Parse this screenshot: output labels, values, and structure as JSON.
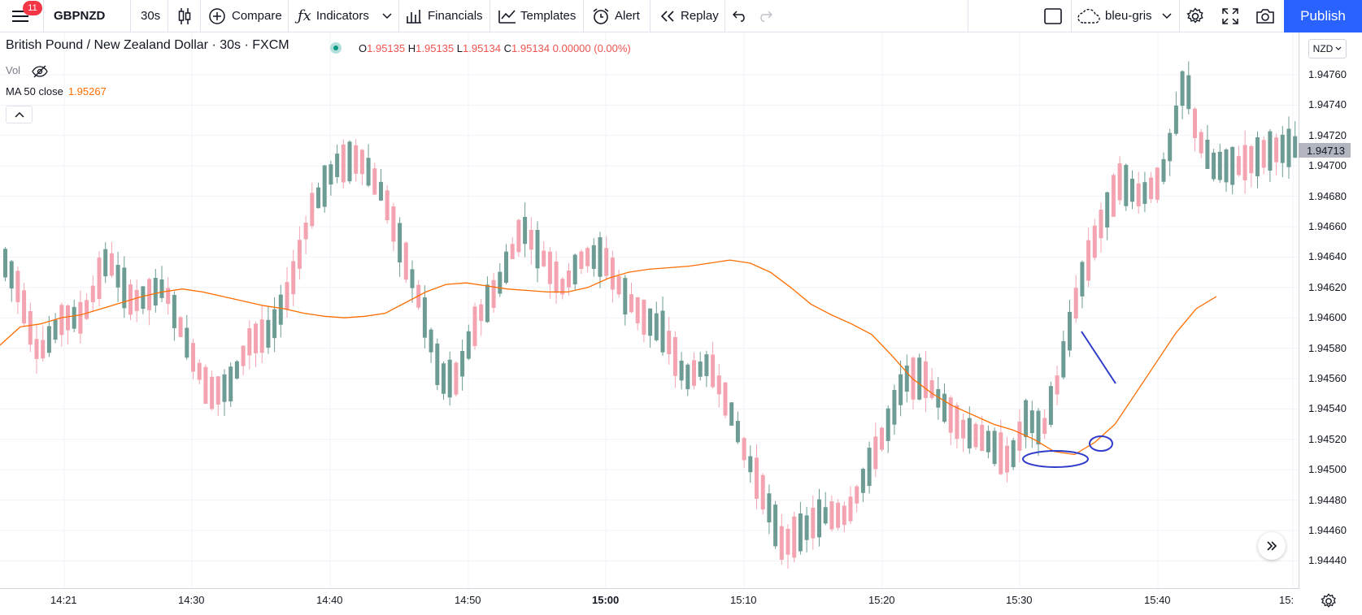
{
  "toolbar": {
    "notification_count": "11",
    "symbol": "GBPNZD",
    "interval": "30s",
    "compare_label": "Compare",
    "indicators_label": "Indicators",
    "financials_label": "Financials",
    "templates_label": "Templates",
    "alert_label": "Alert",
    "replay_label": "Replay",
    "layout_name": "bleu-gris",
    "publish_label": "Publish"
  },
  "legend": {
    "title": "British Pound / New Zealand Dollar · 30s · FXCM",
    "open_key": "O",
    "open": "1.95135",
    "high_key": "H",
    "high": "1.95135",
    "low_key": "L",
    "low": "1.95134",
    "close_key": "C",
    "close": "1.95134",
    "change": "0.00000 (0.00%)",
    "vol_label": "Vol",
    "ma_label": "MA 50 close",
    "ma_value": "1.95267"
  },
  "price_axis": {
    "currency": "NZD",
    "last_price": "1.94713",
    "ticks": [
      "1.94760",
      "1.94740",
      "1.94720",
      "1.94700",
      "1.94680",
      "1.94660",
      "1.94640",
      "1.94620",
      "1.94600",
      "1.94580",
      "1.94560",
      "1.94540",
      "1.94520",
      "1.94500",
      "1.94480",
      "1.94460",
      "1.94440"
    ]
  },
  "time_axis": {
    "ticks": [
      "14:21",
      "14:30",
      "14:40",
      "14:50",
      "15:00",
      "15:10",
      "15:20",
      "15:30",
      "15:40",
      "15:"
    ]
  },
  "colors": {
    "up": "#6d9c94",
    "down": "#f4a4b0",
    "ma": "#ff6d00",
    "annotation": "#2f3bc9",
    "accent": "#2962ff"
  },
  "chart_data": {
    "type": "candlestick",
    "ylim": [
      1.9443,
      1.9479
    ],
    "ma_series": [
      1.94582,
      1.94594,
      1.94596,
      1.946,
      1.94602,
      1.94606,
      1.9461,
      1.94614,
      1.94617,
      1.94619,
      1.94617,
      1.94614,
      1.94611,
      1.94608,
      1.94606,
      1.94603,
      1.94601,
      1.946,
      1.94601,
      1.94603,
      1.9461,
      1.94617,
      1.94622,
      1.94623,
      1.94621,
      1.94619,
      1.94618,
      1.94617,
      1.94617,
      1.9462,
      1.94626,
      1.9463,
      1.94632,
      1.94633,
      1.94634,
      1.94636,
      1.94638,
      1.94636,
      1.9463,
      1.9462,
      1.94609,
      1.94602,
      1.94596,
      1.94589,
      1.94575,
      1.9456,
      1.9455,
      1.94542,
      1.94536,
      1.9453,
      1.94526,
      1.9452,
      1.94512,
      1.9451,
      1.94518,
      1.9453,
      1.9455,
      1.9457,
      1.9459,
      1.94606,
      1.94614
    ],
    "annotations": [
      "arrow",
      "ellipse",
      "ellipse"
    ]
  }
}
